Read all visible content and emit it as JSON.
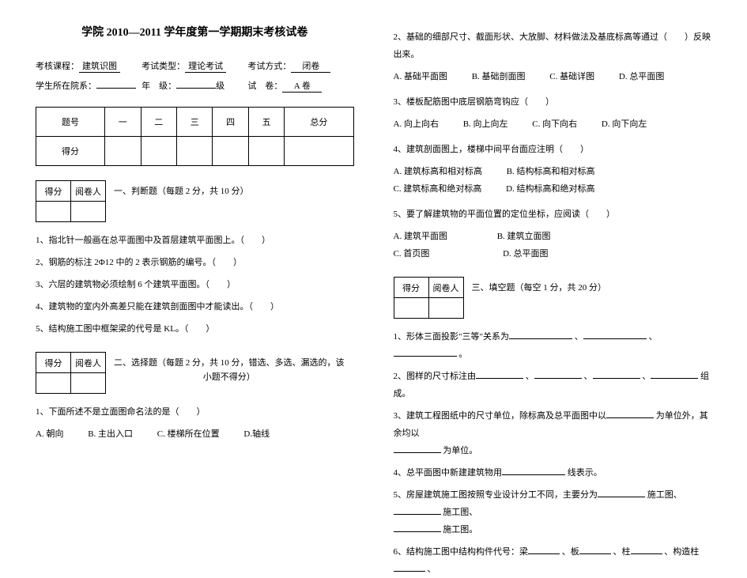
{
  "title": "学院 2010—2011 学年度第一学期期末考核试卷",
  "meta": {
    "course_label": "考核课程：",
    "course_value": "建筑识图",
    "type_label": "考试类型：",
    "type_value": "理论考试",
    "method_label": "考试方式：",
    "method_value": "闭卷",
    "dept_label": "学生所在院系：",
    "grade_label": "年　级：",
    "grade_suffix": "级",
    "paper_label": "试　卷：",
    "paper_value": "A 卷"
  },
  "score_table": {
    "h0": "题号",
    "h1": "一",
    "h2": "二",
    "h3": "三",
    "h4": "四",
    "h5": "五",
    "h6": "总分",
    "r0": "得分"
  },
  "mini": {
    "c0": "得分",
    "c1": "阅卷人"
  },
  "sec1": "一、判断题（每题 2 分，共 10 分）",
  "s1q1": "1、指北针一般画在总平面图中及首层建筑平面图上。（　　）",
  "s1q2": "2、钢筋的标注 2Φ12 中的 2 表示钢筋的编号。（　　）",
  "s1q3": "3、六层的建筑物必须绘制 6 个建筑平面图。（　　）",
  "s1q4": "4、建筑物的室内外高差只能在建筑剖面图中才能读出。（　　）",
  "s1q5": "5、结构施工图中框架梁的代号是 KL。（　　）",
  "sec2a": "二、选择题（每题 2 分，共 10 分，错选、多选、漏选的，该",
  "sec2b": "小题不得分）",
  "s2q1": "1、下面所述不是立面图命名法的是（　　）",
  "s2q1o": {
    "a": "A. 朝向",
    "b": "B. 主出入口",
    "c": "C. 楼梯所在位置",
    "d": "D.轴线"
  },
  "s2q2": "2、基础的细部尺寸、截面形状、大放脚、材料做法及基底标高等通过（　　）反映出来。",
  "s2q2o": {
    "a": "A. 基础平面图",
    "b": "B. 基础剖面图",
    "c": "C. 基础详图",
    "d": "D. 总平面图"
  },
  "s2q3": "3、楼板配筋图中底层钢筋弯钩应（　　）",
  "s2q3o": {
    "a": "A. 向上向右",
    "b": "B. 向上向左",
    "c": "C. 向下向右",
    "d": "D. 向下向左"
  },
  "s2q4": "4、建筑剖面图上，楼梯中间平台面应注明（　　）",
  "s2q4o": {
    "a": "A. 建筑标高和相对标高",
    "b": "B. 结构标高和相对标高",
    "c": "C. 建筑标高和绝对标高",
    "d": "D. 结构标高和绝对标高"
  },
  "s2q5": "5、要了解建筑物的平面位置的定位坐标，应阅读（　　）",
  "s2q5o": {
    "a": "A. 建筑平面图",
    "b": "B. 建筑立面图",
    "c": "C. 首页图",
    "d": "D. 总平面图"
  },
  "sec3": "三、填空题（每空 1 分，共 20 分）",
  "s3q1a": "1、形体三面投影\"三等\"关系为",
  "s3q1b": "、",
  "s3q1c": "、",
  "s3q1d": "。",
  "s3q2a": "2、图样的尺寸标注由",
  "s3q2b": "、",
  "s3q2c": "、",
  "s3q2d": "、",
  "s3q2e": "组成。",
  "s3q3a": "3、建筑工程图纸中的尺寸单位，除标高及总平面图中以",
  "s3q3b": "为单位外，其余均以",
  "s3q3c": "为单位。",
  "s3q4a": "4、总平面图中新建建筑物用",
  "s3q4b": "线表示。",
  "s3q5a": "5、房屋建筑施工图按照专业设计分工不同，主要分为",
  "s3q5b": "施工图、",
  "s3q5c": "施工图、",
  "s3q5d": "施工图。",
  "s3q6a": "6、结构施工图中结构构件代号：梁",
  "s3q6b": "、板",
  "s3q6c": "、柱",
  "s3q6d": "、构造柱",
  "s3q6e": "、"
}
